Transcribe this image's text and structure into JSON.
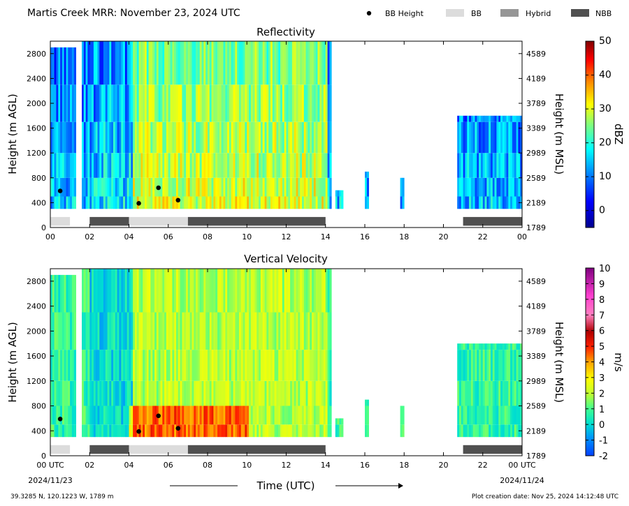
{
  "header": {
    "title": "Martis Creek MRR:  November 23, 2024 UTC",
    "legend": [
      {
        "label": "BB Height",
        "kind": "dot",
        "color": "#000000"
      },
      {
        "label": "BB",
        "kind": "patch",
        "color": "#dcdcdc"
      },
      {
        "label": "Hybrid",
        "kind": "patch",
        "color": "#969696"
      },
      {
        "label": "NBB",
        "kind": "patch",
        "color": "#505050"
      }
    ]
  },
  "footer": {
    "location": "39.3285 N, 120.1223 W, 1789 m",
    "created": "Plot creation date: Nov 25, 2024 14:12:48 UTC",
    "xlabel": "Time (UTC)",
    "start_date": "2024/11/23",
    "end_date": "2024/11/24"
  },
  "chart_data": [
    {
      "type": "heatmap",
      "title": "Reflectivity",
      "xlabel": "",
      "ylabel": "Height (m AGL)",
      "ylabel_right": "Height (m MSL)",
      "x_ticks": [
        "00",
        "02",
        "04",
        "06",
        "08",
        "10",
        "12",
        "14",
        "16",
        "18",
        "20",
        "22",
        "00"
      ],
      "xlim": [
        0,
        24
      ],
      "ylim": [
        0,
        3000
      ],
      "y_ticks": [
        0,
        400,
        800,
        1200,
        1600,
        2000,
        2400,
        2800
      ],
      "y_ticks_right": [
        "1789",
        "2189",
        "2589",
        "2989",
        "3389",
        "3789",
        "4189",
        "4589"
      ],
      "colorbar": {
        "label": "dBZ",
        "min": -5,
        "max": 50,
        "ticks": [
          0,
          10,
          20,
          30,
          40,
          50
        ]
      },
      "bb_height_points": [
        {
          "time": 0.5,
          "height": 590
        },
        {
          "time": 4.5,
          "height": 390
        },
        {
          "time": 5.5,
          "height": 640
        },
        {
          "time": 6.5,
          "height": 440
        }
      ],
      "classification": [
        {
          "start": 0.0,
          "end": 1.0,
          "class": "BB"
        },
        {
          "start": 2.0,
          "end": 4.0,
          "class": "NBB"
        },
        {
          "start": 4.0,
          "end": 7.0,
          "class": "BB"
        },
        {
          "start": 7.0,
          "end": 14.0,
          "class": "NBB"
        },
        {
          "start": 21.0,
          "end": 24.0,
          "class": "NBB"
        }
      ]
    },
    {
      "type": "heatmap",
      "title": "Vertical Velocity",
      "xlabel": "Time (UTC)",
      "ylabel": "Height (m AGL)",
      "ylabel_right": "Height (m MSL)",
      "x_ticks": [
        "00 UTC",
        "02",
        "04",
        "06",
        "08",
        "10",
        "12",
        "14",
        "16",
        "18",
        "20",
        "22",
        "00 UTC"
      ],
      "xlim": [
        0,
        24
      ],
      "ylim": [
        0,
        3000
      ],
      "y_ticks": [
        0,
        400,
        800,
        1200,
        1600,
        2000,
        2400,
        2800
      ],
      "y_ticks_right": [
        "1789",
        "2189",
        "2589",
        "2989",
        "3389",
        "3789",
        "4189",
        "4589"
      ],
      "colorbar": {
        "label": "m/s",
        "min": -2,
        "max": 10,
        "ticks": [
          -2,
          -1,
          0,
          1,
          2,
          3,
          4,
          5,
          6,
          7,
          8,
          9,
          10
        ]
      },
      "bb_height_points": [
        {
          "time": 0.5,
          "height": 590
        },
        {
          "time": 4.5,
          "height": 390
        },
        {
          "time": 5.5,
          "height": 640
        },
        {
          "time": 6.5,
          "height": 440
        }
      ],
      "classification": [
        {
          "start": 0.0,
          "end": 1.0,
          "class": "BB"
        },
        {
          "start": 2.0,
          "end": 4.0,
          "class": "NBB"
        },
        {
          "start": 4.0,
          "end": 7.0,
          "class": "BB"
        },
        {
          "start": 7.0,
          "end": 14.0,
          "class": "NBB"
        },
        {
          "start": 21.0,
          "end": 24.0,
          "class": "NBB"
        }
      ]
    }
  ]
}
